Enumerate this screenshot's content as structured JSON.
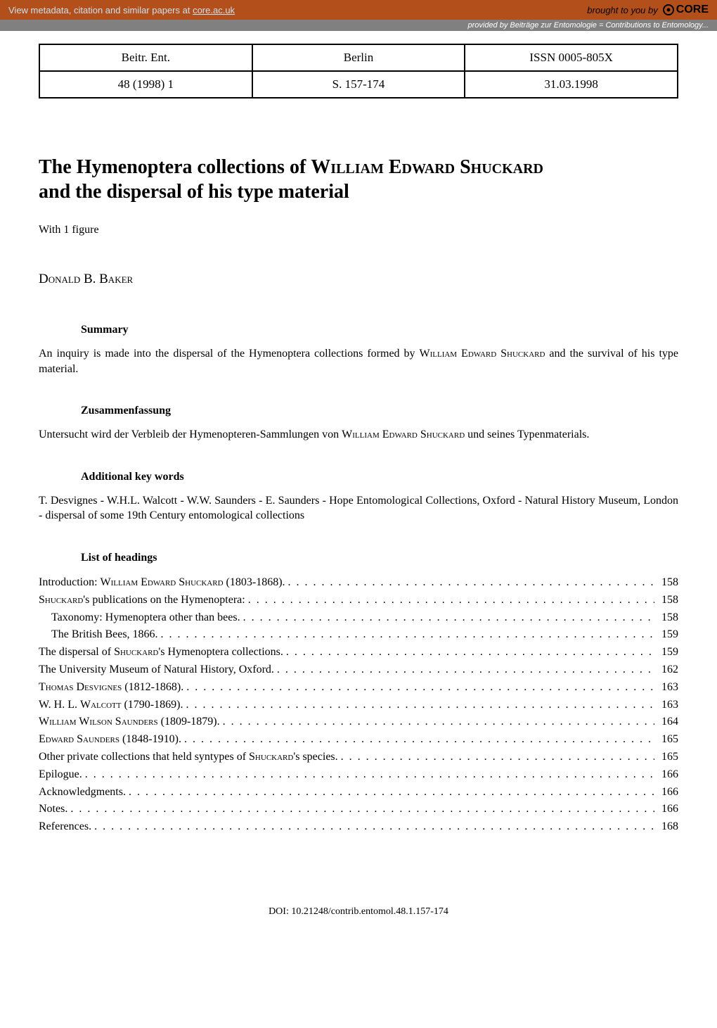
{
  "banner": {
    "left_prefix": "View metadata, citation and similar papers at ",
    "link_text": "core.ac.uk",
    "brought_by": "brought to you by",
    "core_label": "CORE"
  },
  "provided_bar": "provided by Beiträge zur Entomologie = Contributions to Entomology...",
  "meta_table": {
    "r1c1": "Beitr. Ent.",
    "r1c2": "Berlin",
    "r1c3": "ISSN 0005-805X",
    "r2c1": "48 (1998) 1",
    "r2c2": "S. 157-174",
    "r2c3": "31.03.1998"
  },
  "title_line1": "The Hymenoptera collections of ",
  "title_name": "William Edward Shuckard",
  "title_line2": "and the dispersal of his type material",
  "with_figure": "With 1 figure",
  "author": "Donald B. Baker",
  "sections": {
    "summary_heading": "Summary",
    "summary_body_pre": "An inquiry is made into the dispersal of the Hymenoptera collections formed by ",
    "summary_name": "William Edward Shuckard",
    "summary_body_post": " and the survival of his type material.",
    "zusammen_heading": "Zusammenfassung",
    "zusammen_body_pre": "Untersucht wird der Verbleib der Hymenopteren-Sammlungen von ",
    "zusammen_name": "William Edward Shuckard",
    "zusammen_body_post": " und seines Typenmaterials.",
    "keywords_heading": "Additional key words",
    "keywords_body": "T. Desvignes - W.H.L. Walcott - W.W. Saunders - E. Saunders - Hope Entomological Collections, Oxford - Natural History Museum, London - dispersal of some 19th Century entomological collections",
    "list_heading": "List of headings"
  },
  "toc": [
    {
      "label_pre": "Introduction: ",
      "label_sc": "William Edward Shuckard",
      "label_post": " (1803-1868).",
      "page": "158",
      "indent": false
    },
    {
      "label_pre": "",
      "label_sc": "Shuckard",
      "label_post": "'s publications on the Hymenoptera:",
      "page": "158",
      "indent": false
    },
    {
      "label_pre": "Taxonomy: Hymenoptera other than bees.",
      "label_sc": "",
      "label_post": "",
      "page": "158",
      "indent": true
    },
    {
      "label_pre": "The British Bees, 1866.",
      "label_sc": "",
      "label_post": "",
      "page": "159",
      "indent": true
    },
    {
      "label_pre": "The dispersal of ",
      "label_sc": "Shuckard",
      "label_post": "'s Hymenoptera collections.",
      "page": "159",
      "indent": false
    },
    {
      "label_pre": "The University Museum of Natural History, Oxford.",
      "label_sc": "",
      "label_post": "",
      "page": "162",
      "indent": false
    },
    {
      "label_pre": "",
      "label_sc": "Thomas Desvignes",
      "label_post": " (1812-1868).",
      "page": "163",
      "indent": false
    },
    {
      "label_pre": "W. H. L. ",
      "label_sc": "Walcott",
      "label_post": " (1790-1869).",
      "page": "163",
      "indent": false
    },
    {
      "label_pre": "",
      "label_sc": "William Wilson Saunders",
      "label_post": " (1809-1879).",
      "page": "164",
      "indent": false
    },
    {
      "label_pre": "",
      "label_sc": "Edward Saunders",
      "label_post": " (1848-1910).",
      "page": "165",
      "indent": false
    },
    {
      "label_pre": "Other private collections that held syntypes of ",
      "label_sc": "Shuckard",
      "label_post": "'s species.",
      "page": "165",
      "indent": false
    },
    {
      "label_pre": "Epilogue.",
      "label_sc": "",
      "label_post": "",
      "page": "166",
      "indent": false
    },
    {
      "label_pre": "Acknowledgments.",
      "label_sc": "",
      "label_post": "",
      "page": "166",
      "indent": false
    },
    {
      "label_pre": "Notes.",
      "label_sc": "",
      "label_post": "",
      "page": "166",
      "indent": false
    },
    {
      "label_pre": "References.",
      "label_sc": "",
      "label_post": "",
      "page": "168",
      "indent": false
    }
  ],
  "doi": "DOI: 10.21248/contrib.entomol.48.1.157-174",
  "colors": {
    "banner_bg": "#b34f1b",
    "banner_link": "#c8e0f0",
    "provided_bg": "#808080",
    "text": "#000000",
    "page_bg": "#ffffff"
  },
  "typography": {
    "body_font": "Georgia, Times New Roman, serif",
    "banner_font": "Arial, sans-serif",
    "title_size_pt": 21,
    "body_size_pt": 12,
    "author_size_pt": 14
  }
}
